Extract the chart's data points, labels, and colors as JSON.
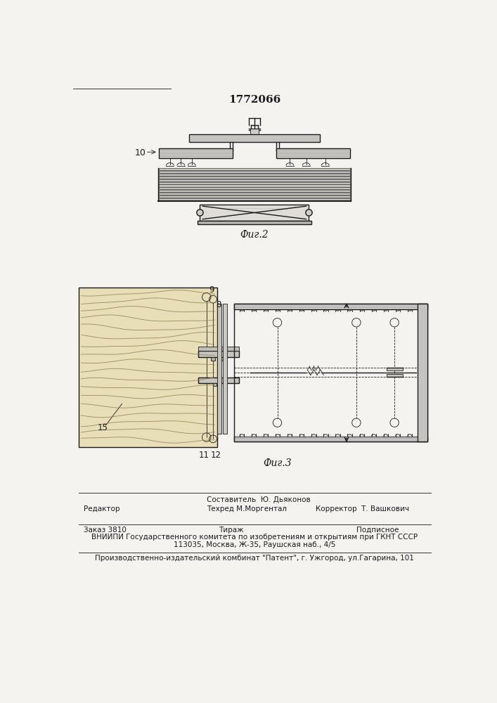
{
  "patent_number": "1772066",
  "bg_color": "#f5f3f0",
  "line_color": "#1a1a1a",
  "fig2_label": "Фиг.2",
  "fig3_label": "Фиг.3",
  "label_10": "10",
  "label_15": "15",
  "label_11": "11",
  "label_12": "12",
  "label_8": "8",
  "label_9": "9",
  "footer_line1_left": "Редактор",
  "footer_line1_center": "Составитель  Ю. Дьяконов",
  "footer_line2_center": "Техред М.Моргентал",
  "footer_line2_right": "Корректор  Т. Вашкович",
  "footer_line3_left": "Заказ 3810",
  "footer_line3_center": "Тираж",
  "footer_line3_right": "Подписное",
  "footer_line4": "ВНИИПИ Государственного комитета по изобретениям и открытиям при ГКНТ СССР",
  "footer_line5": "113035, Москва, Ж-35, Раушская наб., 4/5",
  "footer_line6": "Производственно-издательский комбинат \"Патент\", г. Ужгород, ул.Гагарина, 101"
}
